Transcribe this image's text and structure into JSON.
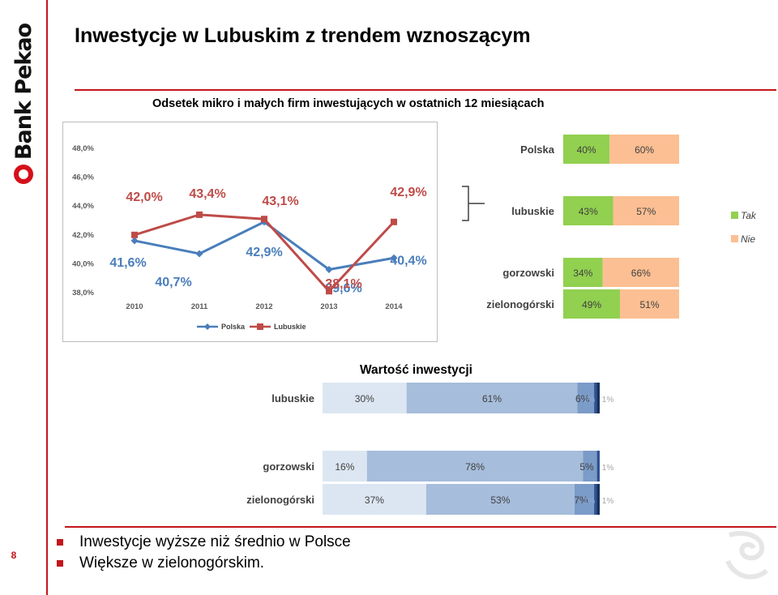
{
  "brand": {
    "logo_text": "Bank Pekao",
    "accent_color": "#c4161c"
  },
  "page_number": "8",
  "title": "Inwestycje w Lubuskim z trendem wznoszącym",
  "subtitle": "Odsetek mikro i małych firm inwestujących w ostatnich 12 miesiącach",
  "section_title": "Wartość inwestycji",
  "bullets": [
    "Inwestycje wyższe niż średnio w Polsce",
    "Większe w zielonogórskim."
  ],
  "chart_data": [
    {
      "type": "line",
      "x": [
        "2010",
        "2011",
        "2012",
        "2013",
        "2014"
      ],
      "ylim": [
        38,
        48
      ],
      "y_ticks": [
        "38,0%",
        "40,0%",
        "42,0%",
        "44,0%",
        "46,0%",
        "48,0%"
      ],
      "series": [
        {
          "name": "Polska",
          "color": "#4a7ebb",
          "values": [
            41.6,
            40.7,
            42.9,
            39.6,
            40.4
          ],
          "labels": [
            "41,6%",
            "40,7%",
            "42,9%",
            "39,6%",
            "40,4%"
          ]
        },
        {
          "name": "Lubuskie",
          "color": "#be4b48",
          "values": [
            42.0,
            43.4,
            43.1,
            38.1,
            42.9
          ],
          "labels": [
            "42,0%",
            "43,4%",
            "43,1%",
            "38,1%",
            "42,9%"
          ]
        }
      ],
      "legend": "bottom"
    },
    {
      "type": "bar",
      "stacked": true,
      "orientation": "horizontal",
      "categories": [
        "Polska",
        "lubuskie",
        "gorzowski",
        "zielonogórski"
      ],
      "series": [
        {
          "name": "Tak",
          "color": "#92d050",
          "values": [
            40,
            43,
            34,
            49
          ],
          "labels": [
            "40%",
            "43%",
            "34%",
            "49%"
          ]
        },
        {
          "name": "Nie",
          "color": "#fbbf93",
          "values": [
            60,
            57,
            66,
            51
          ],
          "labels": [
            "60%",
            "57%",
            "66%",
            "51%"
          ]
        }
      ],
      "legend": "right"
    },
    {
      "type": "bar",
      "stacked": true,
      "orientation": "horizontal",
      "categories": [
        "lubuskie",
        "gorzowski",
        "zielonogórski"
      ],
      "segment_colors": [
        "#dce6f2",
        "#a6bddb",
        "#7b9bc8",
        "#2e5190",
        "#17305e"
      ],
      "rows": [
        {
          "values": [
            30,
            61,
            6,
            1,
            1
          ],
          "labels": [
            "30%",
            "61%",
            "6%",
            "1%",
            "1%"
          ]
        },
        {
          "values": [
            16,
            78,
            5,
            1
          ],
          "labels": [
            "16%",
            "78%",
            "5%",
            "1%"
          ]
        },
        {
          "values": [
            37,
            53,
            7,
            1,
            1
          ],
          "labels": [
            "37%",
            "53%",
            "7%",
            "1%",
            "1%"
          ]
        }
      ]
    }
  ]
}
